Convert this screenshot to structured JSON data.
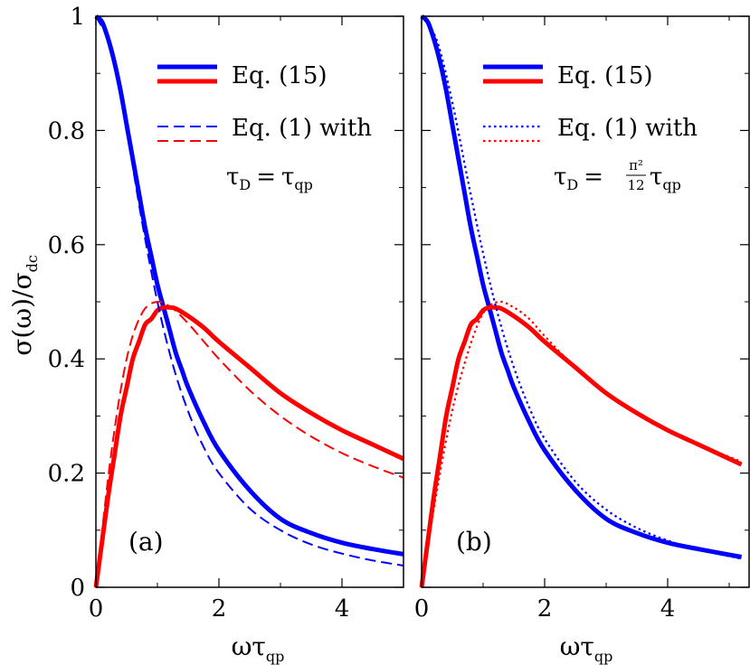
{
  "chart_data": {
    "type": "line",
    "ylabel_parts": {
      "numer": "σ(ω)",
      "slash": "/",
      "denom": "σ",
      "denom_sub": "dc"
    },
    "xlabel_parts": {
      "main": "ωτ",
      "sub": "qp"
    },
    "xlim": [
      0,
      5.2
    ],
    "ylim": [
      0,
      1
    ],
    "xticks": [
      "0",
      "2",
      "4"
    ],
    "yticks": [
      "0",
      "0.2",
      "0.4",
      "0.6",
      "0.8",
      "1"
    ],
    "panels": [
      {
        "label": "(a)",
        "xlim": [
          0,
          5
        ],
        "legend": {
          "solid_label": "Eq. (15)",
          "dashed_label": "Eq. (1) with",
          "formula": {
            "tau": "τ",
            "sub_d": "D",
            "eq": "=",
            "tau2": "τ",
            "sub_qp": "qp"
          }
        },
        "series": [
          {
            "style": "solid",
            "color": "#0000ff",
            "x": [
              0,
              0.1,
              0.2,
              0.3,
              0.4,
              0.5,
              0.6,
              0.7,
              0.8,
              0.9,
              1.0,
              1.1,
              1.2,
              1.3,
              1.4,
              1.5,
              1.75,
              2.0,
              2.5,
              3.0,
              3.5,
              4.0,
              4.5,
              5.0
            ],
            "y": [
              1.0,
              0.99,
              0.96,
              0.92,
              0.87,
              0.81,
              0.75,
              0.69,
              0.63,
              0.58,
              0.53,
              0.49,
              0.45,
              0.41,
              0.38,
              0.35,
              0.29,
              0.24,
              0.17,
              0.12,
              0.095,
              0.078,
              0.067,
              0.058
            ]
          },
          {
            "style": "solid",
            "color": "#ff0000",
            "x": [
              0,
              0.1,
              0.2,
              0.3,
              0.4,
              0.5,
              0.6,
              0.7,
              0.8,
              0.9,
              1.0,
              1.1,
              1.2,
              1.3,
              1.5,
              1.75,
              2.0,
              2.5,
              3.0,
              3.5,
              4.0,
              4.5,
              5.0
            ],
            "y": [
              0.0,
              0.08,
              0.16,
              0.23,
              0.3,
              0.35,
              0.4,
              0.43,
              0.46,
              0.47,
              0.485,
              0.49,
              0.49,
              0.488,
              0.475,
              0.455,
              0.43,
              0.385,
              0.34,
              0.305,
              0.275,
              0.25,
              0.225
            ]
          },
          {
            "style": "dashed",
            "color": "#0000ff",
            "x": [
              0,
              0.25,
              0.5,
              0.75,
              1.0,
              1.25,
              1.5,
              1.75,
              2.0,
              2.5,
              3.0,
              3.5,
              4.0,
              4.5,
              5.0
            ],
            "y": [
              1.0,
              0.941,
              0.8,
              0.64,
              0.5,
              0.39,
              0.308,
              0.246,
              0.2,
              0.138,
              0.1,
              0.075,
              0.059,
              0.047,
              0.038
            ]
          },
          {
            "style": "dashed",
            "color": "#ff0000",
            "x": [
              0,
              0.25,
              0.5,
              0.75,
              1.0,
              1.25,
              1.5,
              1.75,
              2.0,
              2.5,
              3.0,
              3.5,
              4.0,
              4.5,
              5.0
            ],
            "y": [
              0.0,
              0.235,
              0.4,
              0.48,
              0.5,
              0.488,
              0.462,
              0.431,
              0.4,
              0.345,
              0.3,
              0.264,
              0.235,
              0.212,
              0.192
            ]
          }
        ]
      },
      {
        "label": "(b)",
        "xlim": [
          0,
          5.2
        ],
        "legend": {
          "solid_label": "Eq. (15)",
          "dashed_label": "Eq. (1) with",
          "formula": {
            "tau": "τ",
            "sub_d": "D",
            "eq": "=",
            "frac_num": "π²",
            "frac_den": "12",
            "tau2": "τ",
            "sub_qp": "qp"
          }
        },
        "series": [
          {
            "style": "solid",
            "color": "#0000ff",
            "x": [
              0,
              0.1,
              0.2,
              0.3,
              0.4,
              0.5,
              0.6,
              0.7,
              0.8,
              0.9,
              1.0,
              1.1,
              1.2,
              1.3,
              1.4,
              1.5,
              1.75,
              2.0,
              2.5,
              3.0,
              3.5,
              4.0,
              4.5,
              5.2
            ],
            "y": [
              1.0,
              0.99,
              0.96,
              0.92,
              0.87,
              0.81,
              0.75,
              0.69,
              0.63,
              0.58,
              0.53,
              0.49,
              0.45,
              0.41,
              0.38,
              0.35,
              0.29,
              0.24,
              0.17,
              0.12,
              0.095,
              0.078,
              0.067,
              0.053
            ]
          },
          {
            "style": "solid",
            "color": "#ff0000",
            "x": [
              0,
              0.1,
              0.2,
              0.3,
              0.4,
              0.5,
              0.6,
              0.7,
              0.8,
              0.9,
              1.0,
              1.1,
              1.2,
              1.3,
              1.5,
              1.75,
              2.0,
              2.5,
              3.0,
              3.5,
              4.0,
              4.5,
              5.2
            ],
            "y": [
              0.0,
              0.08,
              0.16,
              0.23,
              0.3,
              0.35,
              0.4,
              0.43,
              0.46,
              0.47,
              0.485,
              0.49,
              0.49,
              0.488,
              0.475,
              0.455,
              0.43,
              0.385,
              0.34,
              0.305,
              0.275,
              0.25,
              0.215
            ]
          },
          {
            "style": "dotted",
            "color": "#0000ff",
            "x": [
              0,
              0.25,
              0.5,
              0.75,
              1.0,
              1.25,
              1.5,
              1.75,
              2.0,
              2.5,
              3.0,
              3.5,
              4.0,
              4.5,
              5.2
            ],
            "y": [
              1.0,
              0.957,
              0.849,
              0.714,
              0.585,
              0.474,
              0.385,
              0.315,
              0.26,
              0.185,
              0.136,
              0.104,
              0.082,
              0.066,
              0.05
            ]
          },
          {
            "style": "dotted",
            "color": "#ff0000",
            "x": [
              0,
              0.25,
              0.5,
              0.75,
              1.0,
              1.25,
              1.5,
              1.75,
              2.0,
              2.5,
              3.0,
              3.5,
              4.0,
              4.5,
              5.2
            ],
            "y": [
              0.0,
              0.17,
              0.31,
              0.41,
              0.48,
              0.5,
              0.49,
              0.47,
              0.44,
              0.385,
              0.34,
              0.305,
              0.275,
              0.25,
              0.22
            ]
          }
        ]
      }
    ]
  }
}
